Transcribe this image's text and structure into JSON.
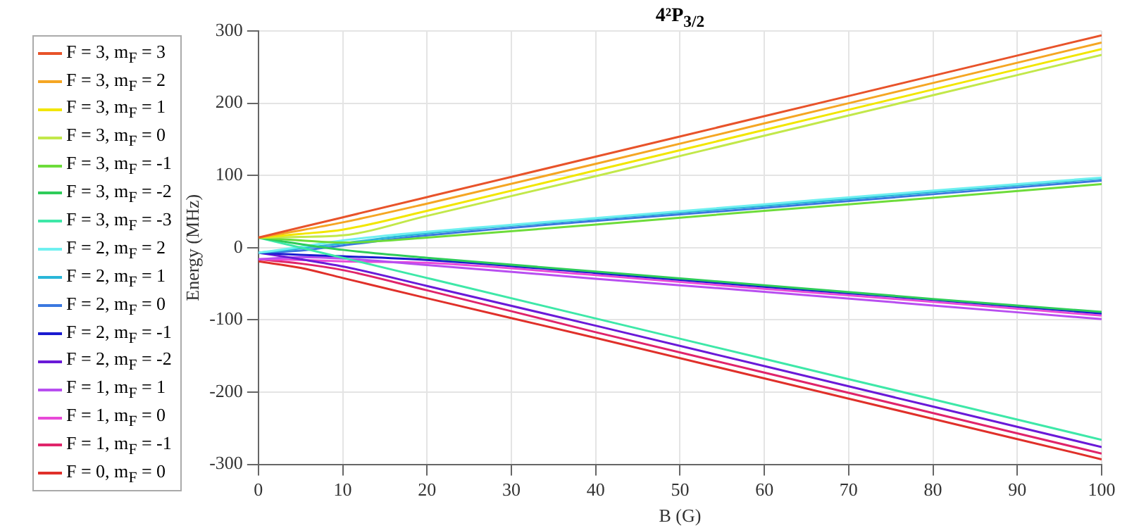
{
  "chart_data": {
    "type": "line",
    "title": "4²P$_{3/2}$",
    "xlabel": "B (G)",
    "ylabel": "Energy (MHz)",
    "x": [
      0,
      5,
      10,
      20,
      40,
      60,
      80,
      100
    ],
    "xlim": [
      0,
      100
    ],
    "xticks": [
      0,
      10,
      20,
      30,
      40,
      50,
      60,
      70,
      80,
      90,
      100
    ],
    "ylim": [
      -300,
      300
    ],
    "yticks": [
      -300,
      -200,
      -100,
      0,
      100,
      200,
      300
    ],
    "grid": true,
    "legend": "left",
    "marker": "none",
    "line_style": "solid",
    "series": [
      {
        "name": "F = 3, m$_{F}$ = 3",
        "color": "#e8532a",
        "values": [
          14,
          28,
          42,
          70,
          126,
          182,
          238,
          294
        ]
      },
      {
        "name": "F = 3, m$_{F}$ = 2",
        "color": "#f5a623",
        "values": [
          14,
          24,
          35,
          61,
          116,
          172,
          228,
          284
        ]
      },
      {
        "name": "F = 3, m$_{F}$ = 1",
        "color": "#f2e600",
        "values": [
          14,
          19,
          25,
          51,
          107,
          163,
          219,
          275
        ]
      },
      {
        "name": "F = 3, m$_{F}$ = 0",
        "color": "#c2e84a",
        "values": [
          14,
          15,
          17,
          44,
          99,
          155,
          211,
          267
        ]
      },
      {
        "name": "F = 3, m$_{F}$ = -1",
        "color": "#6ddc3a",
        "values": [
          14,
          10,
          7,
          14,
          32,
          51,
          69,
          88
        ]
      },
      {
        "name": "F = 3, m$_{F}$ = -2",
        "color": "#2ecc5a",
        "values": [
          14,
          5,
          -3,
          -14,
          -33,
          -52,
          -71,
          -89
        ]
      },
      {
        "name": "F = 3, m$_{F}$ = -3",
        "color": "#3ee8a8",
        "values": [
          14,
          0,
          -14,
          -42,
          -98,
          -154,
          -210,
          -266
        ]
      },
      {
        "name": "F = 2, m$_{F}$ = 2",
        "color": "#6ff0f0",
        "values": [
          -7,
          1,
          10,
          22,
          41,
          60,
          79,
          97
        ]
      },
      {
        "name": "F = 2, m$_{F}$ = 1",
        "color": "#29b6d8",
        "values": [
          -7,
          -1,
          6,
          20,
          40,
          58,
          77,
          96
        ]
      },
      {
        "name": "F = 2, m$_{F}$ = 0",
        "color": "#3b78e0",
        "values": [
          -7,
          -4,
          3,
          17,
          37,
          55,
          74,
          93
        ]
      },
      {
        "name": "F = 2, m$_{F}$ = -1",
        "color": "#1a1ad0",
        "values": [
          -7,
          -10,
          -12,
          -17,
          -35,
          -54,
          -72,
          -91
        ]
      },
      {
        "name": "F = 2, m$_{F}$ = -2",
        "color": "#6a1ad8",
        "values": [
          -7,
          -16,
          -26,
          -53,
          -108,
          -164,
          -220,
          -276
        ]
      },
      {
        "name": "F = 1, m$_{F}$ = 1",
        "color": "#b84ef0",
        "values": [
          -16,
          -13,
          -15,
          -24,
          -43,
          -61,
          -80,
          -99
        ]
      },
      {
        "name": "F = 1, m$_{F}$ = 0",
        "color": "#e84ad8",
        "values": [
          -16,
          -17,
          -19,
          -21,
          -38,
          -57,
          -75,
          -94
        ]
      },
      {
        "name": "F = 1, m$_{F}$ = -1",
        "color": "#e0246a",
        "values": [
          -16,
          -22,
          -31,
          -59,
          -117,
          -173,
          -229,
          -285
        ]
      },
      {
        "name": "F = 0, m$_{F}$ = 0",
        "color": "#e0302a",
        "values": [
          -19,
          -28,
          -42,
          -70,
          -125,
          -181,
          -237,
          -293
        ]
      }
    ]
  }
}
